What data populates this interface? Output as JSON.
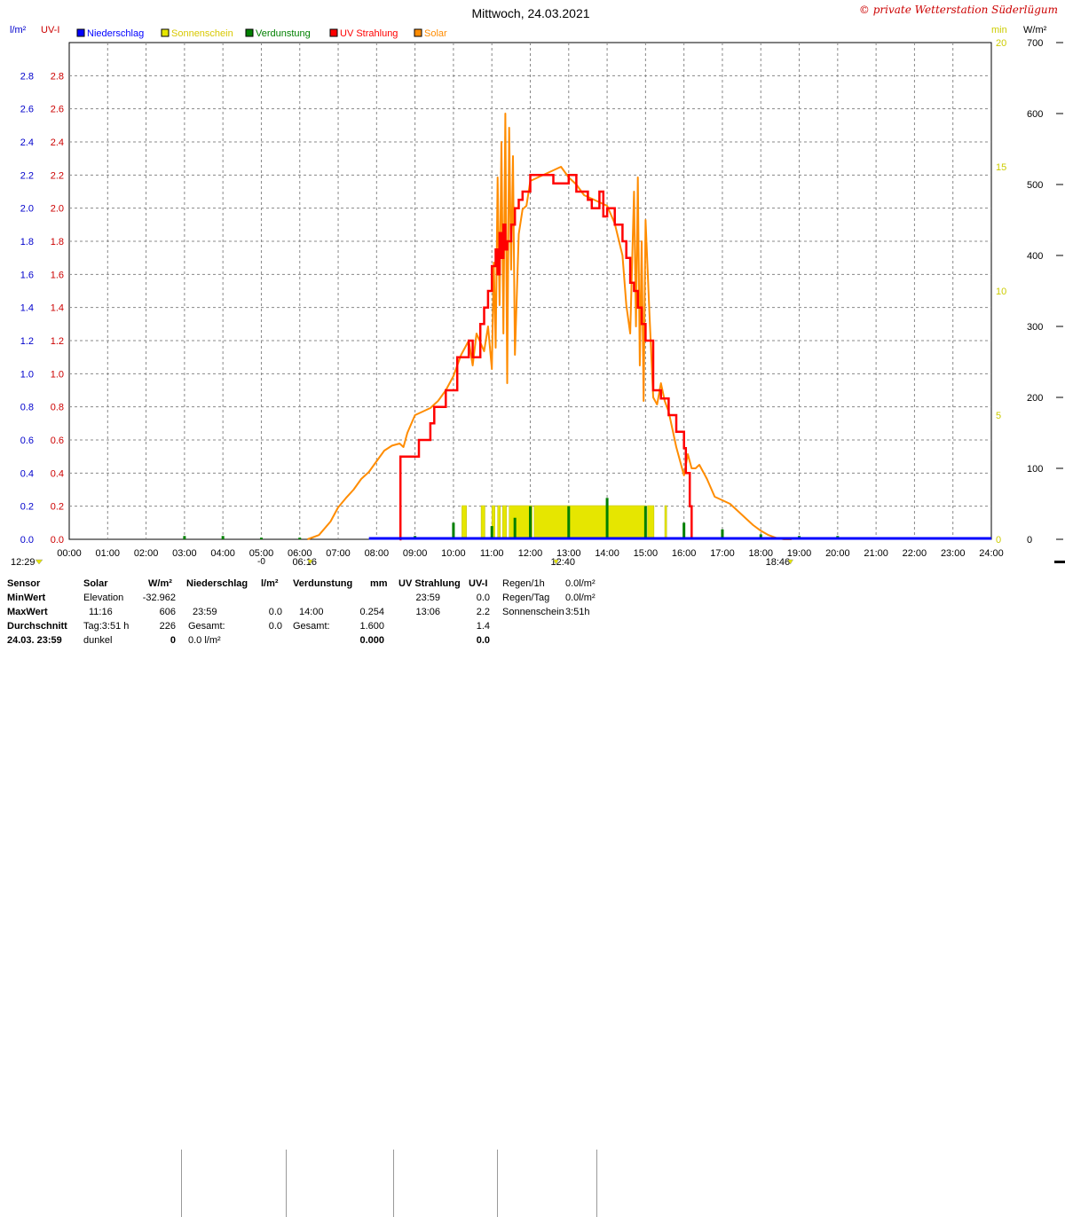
{
  "chart_data": {
    "type": "line",
    "title": "Mittwoch, 24.03.2021",
    "copyright": "© private Wetterstation Süderlügum",
    "left_axes": [
      {
        "unit": "l/m²",
        "color": "#0000cc",
        "ylim": [
          0,
          3.0
        ],
        "ticks": [
          "0.0",
          "0.2",
          "0.4",
          "0.6",
          "0.8",
          "1.0",
          "1.2",
          "1.4",
          "1.6",
          "1.8",
          "2.0",
          "2.2",
          "2.4",
          "2.6",
          "2.8"
        ]
      },
      {
        "unit": "UV-I",
        "color": "#cc0000",
        "ylim": [
          0,
          3.0
        ],
        "ticks": [
          "0.0",
          "0.2",
          "0.4",
          "0.6",
          "0.8",
          "1.0",
          "1.2",
          "1.4",
          "1.6",
          "1.8",
          "2.0",
          "2.2",
          "2.4",
          "2.6",
          "2.8"
        ]
      }
    ],
    "right_axes": [
      {
        "unit": "min",
        "color": "#cccc00",
        "ylim": [
          0,
          20
        ],
        "ticks": [
          "0",
          "5",
          "10",
          "15",
          "20"
        ]
      },
      {
        "unit": "W/m²",
        "color": "#000000",
        "ylim": [
          0,
          700
        ],
        "ticks": [
          "0",
          "100",
          "200",
          "300",
          "400",
          "500",
          "600",
          "700"
        ]
      }
    ],
    "x_ticks": [
      "00:00",
      "01:00",
      "02:00",
      "03:00",
      "04:00",
      "05:00",
      "06:00",
      "07:00",
      "08:00",
      "09:00",
      "10:00",
      "11:00",
      "12:00",
      "13:00",
      "14:00",
      "15:00",
      "16:00",
      "17:00",
      "18:00",
      "19:00",
      "20:00",
      "21:00",
      "22:00",
      "23:00",
      "24:00"
    ],
    "grid": true,
    "legend": [
      {
        "name": "Niederschlag",
        "color": "#0000ff"
      },
      {
        "name": "Sonnenschein",
        "color": "#e6e600"
      },
      {
        "name": "Verdunstung",
        "color": "#008000"
      },
      {
        "name": "UV Strahlung",
        "color": "#ff0000"
      },
      {
        "name": "Solar",
        "color": "#ff8c00"
      }
    ],
    "sun_markers": [
      {
        "time": "12:29",
        "x": 0.5
      },
      {
        "time": "06:16",
        "x": 6.27
      },
      {
        "time": "12:40",
        "x": 12.67
      },
      {
        "time": "18:46",
        "x": 18.77
      }
    ],
    "special_label": "-0",
    "series": [
      {
        "name": "Solar",
        "axis": "W/m²",
        "color": "#ff8c00",
        "x": [
          6.2,
          6.5,
          6.8,
          7.0,
          7.2,
          7.4,
          7.6,
          7.8,
          8.0,
          8.2,
          8.4,
          8.6,
          8.7,
          8.8,
          9.0,
          9.2,
          9.4,
          9.6,
          9.8,
          10.0,
          10.2,
          10.4,
          10.5,
          10.6,
          10.8,
          10.9,
          11.0,
          11.05,
          11.1,
          11.15,
          11.2,
          11.25,
          11.3,
          11.35,
          11.4,
          11.45,
          11.5,
          11.55,
          11.6,
          11.7,
          11.8,
          11.9,
          12.0,
          12.2,
          12.4,
          12.6,
          12.8,
          13.0,
          13.2,
          13.4,
          13.6,
          13.8,
          14.0,
          14.2,
          14.4,
          14.5,
          14.6,
          14.7,
          14.75,
          14.8,
          14.85,
          14.9,
          14.95,
          15.0,
          15.1,
          15.2,
          15.3,
          15.4,
          15.5,
          15.6,
          15.8,
          16.0,
          16.1,
          16.2,
          16.3,
          16.4,
          16.6,
          16.8,
          17.0,
          17.2,
          17.4,
          17.6,
          17.8,
          18.0,
          18.2,
          18.4,
          18.6,
          18.8
        ],
        "y": [
          0,
          6,
          25,
          45,
          58,
          70,
          85,
          95,
          110,
          125,
          132,
          135,
          130,
          150,
          175,
          180,
          185,
          195,
          210,
          230,
          260,
          280,
          245,
          290,
          265,
          300,
          240,
          390,
          270,
          510,
          330,
          560,
          290,
          600,
          220,
          580,
          380,
          540,
          260,
          430,
          465,
          470,
          505,
          510,
          515,
          520,
          525,
          510,
          500,
          485,
          480,
          475,
          470,
          445,
          400,
          330,
          290,
          490,
          300,
          510,
          245,
          420,
          195,
          450,
          320,
          200,
          190,
          220,
          195,
          180,
          130,
          90,
          120,
          100,
          100,
          105,
          85,
          60,
          55,
          50,
          40,
          30,
          20,
          12,
          6,
          2,
          0,
          0
        ]
      },
      {
        "name": "UV Strahlung",
        "axis": "UV-I",
        "color": "#ff0000",
        "x": [
          8.6,
          8.62,
          8.7,
          9.0,
          9.1,
          9.4,
          9.5,
          9.8,
          9.9,
          10.1,
          10.2,
          10.4,
          10.5,
          10.7,
          10.8,
          10.9,
          11.0,
          11.1,
          11.15,
          11.2,
          11.25,
          11.3,
          11.35,
          11.4,
          11.5,
          11.6,
          11.7,
          11.8,
          12.0,
          12.2,
          12.4,
          12.6,
          12.8,
          13.0,
          13.06,
          13.2,
          13.4,
          13.5,
          13.6,
          13.8,
          13.9,
          14.0,
          14.2,
          14.4,
          14.5,
          14.6,
          14.7,
          14.8,
          14.9,
          15.0,
          15.2,
          15.4,
          15.6,
          15.8,
          16.0,
          16.05,
          16.1,
          16.15,
          16.2
        ],
        "y": [
          0,
          0.5,
          0.5,
          0.5,
          0.6,
          0.7,
          0.8,
          0.9,
          0.9,
          1.1,
          1.1,
          1.2,
          1.1,
          1.3,
          1.4,
          1.5,
          1.65,
          1.75,
          1.6,
          1.85,
          1.7,
          1.9,
          1.75,
          1.8,
          1.9,
          2.0,
          2.05,
          2.1,
          2.2,
          2.2,
          2.2,
          2.15,
          2.15,
          2.2,
          2.2,
          2.1,
          2.1,
          2.05,
          2.0,
          2.1,
          1.95,
          2.0,
          1.9,
          1.8,
          1.7,
          1.55,
          1.5,
          1.4,
          1.3,
          1.2,
          0.9,
          0.85,
          0.75,
          0.65,
          0.55,
          0.4,
          0.4,
          0.2,
          0
        ]
      },
      {
        "name": "Sonnenschein",
        "axis": "min",
        "color": "#e6e600",
        "bars": [
          [
            10.22,
            10.34
          ],
          [
            10.72,
            10.82
          ],
          [
            11.0,
            11.08
          ],
          [
            11.15,
            11.22
          ],
          [
            11.28,
            11.38
          ],
          [
            11.45,
            12.05
          ],
          [
            12.1,
            15.0
          ],
          [
            15.05,
            15.22
          ],
          [
            15.5,
            15.55
          ]
        ],
        "value": 1.0
      },
      {
        "name": "Verdunstung",
        "axis": "l/m²",
        "color": "#008000",
        "spikes": [
          [
            3.0,
            0.02
          ],
          [
            4.0,
            0.02
          ],
          [
            5.0,
            0.01
          ],
          [
            6.0,
            0.01
          ],
          [
            8.0,
            0.01
          ],
          [
            9.0,
            0.02
          ],
          [
            10.0,
            0.1
          ],
          [
            11.0,
            0.08
          ],
          [
            11.6,
            0.13
          ],
          [
            12.0,
            0.2
          ],
          [
            13.0,
            0.2
          ],
          [
            14.0,
            0.25
          ],
          [
            15.0,
            0.2
          ],
          [
            16.0,
            0.1
          ],
          [
            17.0,
            0.06
          ],
          [
            18.0,
            0.03
          ],
          [
            19.0,
            0.02
          ],
          [
            20.0,
            0.02
          ]
        ]
      },
      {
        "name": "Niederschlag",
        "axis": "l/m²",
        "color": "#0000ff",
        "x": [
          7.8,
          24
        ],
        "y": [
          0,
          0
        ]
      }
    ]
  },
  "stats": {
    "headers": {
      "sensor": "Sensor",
      "solar": "Solar",
      "solar_unit": "W/m²",
      "rain": "Niederschlag",
      "rain_unit": "l/m²",
      "evap": "Verdunstung",
      "evap_unit": "mm",
      "uv": "UV Strahlung",
      "uv_unit": "UV-I",
      "r1": "Regen/1h",
      "r1_val": "0.0l/m²"
    },
    "rows": [
      {
        "label": "MinWert",
        "solar_label": "Elevation",
        "solar_val": "-32.962",
        "rain_time": "",
        "rain_val": "",
        "evap_time": "",
        "evap_val": "",
        "uv_time": "23:59",
        "uv_val": "0.0",
        "extra_label": "Regen/Tag",
        "extra_val": "0.0l/m²"
      },
      {
        "label": "MaxWert",
        "solar_label": "11:16",
        "solar_val": "606",
        "rain_time": "23:59",
        "rain_val": "0.0",
        "evap_time": "14:00",
        "evap_val": "0.254",
        "uv_time": "13:06",
        "uv_val": "2.2",
        "extra_label": "Sonnenschein",
        "extra_val": "3:51h"
      },
      {
        "label": "Durchschnitt",
        "solar_label": "Tag:3:51 h",
        "solar_val": "226",
        "rain_time": "Gesamt:",
        "rain_val": "0.0",
        "evap_time": "Gesamt:",
        "evap_val": "1.600",
        "uv_time": "",
        "uv_val": "1.4",
        "extra_label": "",
        "extra_val": ""
      },
      {
        "label": "24.03. 23:59",
        "solar_label": "dunkel",
        "solar_val": "0",
        "rain_time": "",
        "rain_val": "0.0 l/m²",
        "evap_time": "",
        "evap_val": "0.000",
        "uv_time": "",
        "uv_val": "0.0",
        "extra_label": "",
        "extra_val": ""
      }
    ]
  }
}
